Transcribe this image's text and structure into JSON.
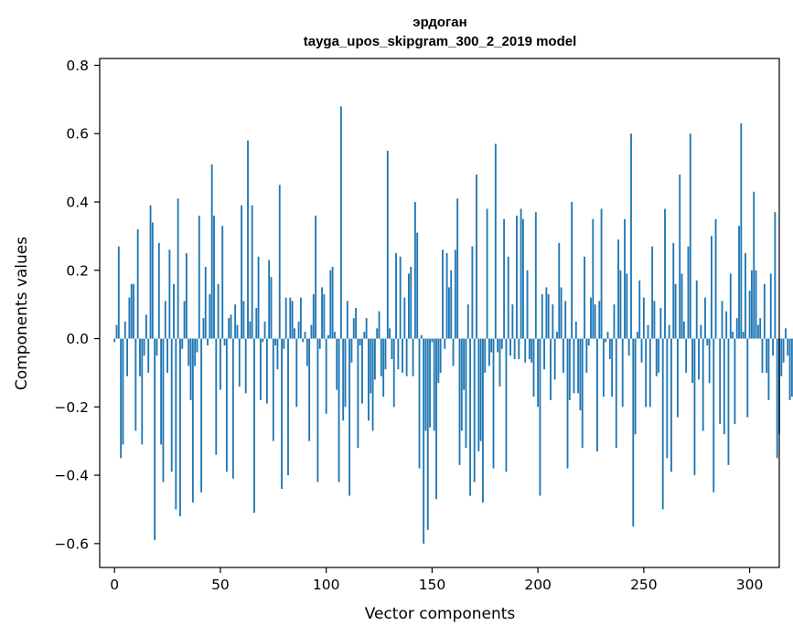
{
  "chart_data": {
    "type": "bar",
    "title_line1": "эрдоган",
    "title_line2": "tayga_upos_skipgram_300_2_2019 model",
    "xlabel": "Vector components",
    "ylabel": "Components values",
    "xlim": [
      -7,
      314
    ],
    "ylim": [
      -0.67,
      0.82
    ],
    "xticks": [
      0,
      50,
      100,
      150,
      200,
      250,
      300
    ],
    "yticks": [
      -0.6,
      -0.4,
      -0.2,
      0.0,
      0.2,
      0.4,
      0.6,
      0.8
    ],
    "ytick_labels": [
      "−0.6",
      "−0.4",
      "−0.2",
      "0.0",
      "0.2",
      "0.4",
      "0.6",
      "0.8"
    ],
    "bar_color": "#1f77b4",
    "values": [
      -0.01,
      0.04,
      0.27,
      -0.35,
      -0.31,
      0.05,
      -0.11,
      0.12,
      0.16,
      0.16,
      -0.27,
      0.32,
      -0.11,
      -0.31,
      -0.05,
      0.07,
      -0.1,
      0.39,
      0.34,
      -0.59,
      -0.05,
      0.28,
      -0.31,
      -0.42,
      0.11,
      -0.1,
      0.26,
      -0.39,
      0.16,
      -0.5,
      0.41,
      -0.52,
      -0.03,
      0.11,
      0.25,
      -0.08,
      -0.18,
      -0.48,
      -0.08,
      -0.04,
      0.36,
      -0.45,
      0.06,
      0.21,
      -0.02,
      0.13,
      0.51,
      0.36,
      -0.34,
      0.16,
      -0.15,
      0.33,
      -0.02,
      -0.39,
      0.06,
      0.07,
      -0.41,
      0.1,
      0.04,
      -0.14,
      0.39,
      0.11,
      -0.16,
      0.58,
      0.05,
      0.39,
      -0.51,
      0.09,
      0.24,
      -0.18,
      -0.01,
      0.05,
      -0.19,
      0.23,
      0.18,
      -0.3,
      -0.02,
      -0.09,
      0.45,
      -0.44,
      -0.03,
      0.12,
      -0.4,
      0.12,
      0.11,
      0.03,
      -0.2,
      0.05,
      0.12,
      -0.01,
      0.02,
      -0.08,
      -0.3,
      0.04,
      0.13,
      0.36,
      -0.42,
      -0.03,
      0.15,
      0.13,
      -0.22,
      0.01,
      0.2,
      0.21,
      0.02,
      -0.15,
      -0.42,
      0.68,
      -0.24,
      -0.2,
      0.11,
      -0.46,
      -0.07,
      0.06,
      0.09,
      -0.32,
      -0.02,
      -0.19,
      0.02,
      0.06,
      -0.24,
      -0.16,
      -0.27,
      -0.12,
      0.03,
      0.08,
      -0.11,
      -0.17,
      -0.09,
      0.55,
      0.03,
      -0.06,
      -0.2,
      0.25,
      -0.09,
      0.24,
      -0.1,
      0.12,
      -0.11,
      0.19,
      0.21,
      -0.11,
      0.4,
      0.31,
      -0.38,
      0.01,
      -0.6,
      -0.27,
      -0.56,
      -0.26,
      -0.01,
      -0.27,
      -0.47,
      -0.13,
      -0.1,
      0.26,
      -0.03,
      0.25,
      0.15,
      0.2,
      -0.08,
      0.26,
      0.41,
      -0.37,
      -0.27,
      -0.15,
      -0.32,
      0.1,
      -0.46,
      0.27,
      -0.42,
      0.48,
      -0.33,
      -0.3,
      -0.48,
      -0.1,
      0.38,
      -0.08,
      -0.04,
      -0.38,
      0.57,
      -0.04,
      -0.14,
      -0.03,
      0.35,
      -0.39,
      0.24,
      -0.05,
      0.1,
      -0.06,
      0.36,
      -0.06,
      0.38,
      0.35,
      -0.07,
      0.2,
      -0.06,
      -0.07,
      -0.17,
      0.37,
      -0.2,
      -0.46,
      0.13,
      -0.09,
      0.15,
      0.13,
      -0.18,
      0.1,
      -0.12,
      0.02,
      0.28,
      0.15,
      -0.1,
      0.11,
      -0.38,
      -0.18,
      0.4,
      -0.16,
      0.05,
      -0.16,
      -0.21,
      -0.32,
      0.24,
      -0.1,
      -0.02,
      0.12,
      0.35,
      0.1,
      -0.33,
      0.11,
      0.38,
      -0.17,
      -0.01,
      0.02,
      -0.06,
      -0.17,
      0.1,
      -0.32,
      0.29,
      0.2,
      -0.2,
      0.35,
      0.19,
      -0.05,
      0.6,
      -0.55,
      -0.28,
      0.02,
      0.17,
      -0.07,
      0.12,
      -0.2,
      0.04,
      -0.2,
      0.27,
      0.11,
      -0.11,
      -0.1,
      0.09,
      -0.5,
      0.38,
      -0.35,
      0.04,
      -0.39,
      0.28,
      0.16,
      -0.23,
      0.48,
      0.19,
      0.05,
      -0.1,
      0.27,
      0.6,
      -0.13,
      -0.4,
      0.17,
      -0.12,
      0.04,
      -0.27,
      0.12,
      -0.02,
      -0.13,
      0.3,
      -0.45,
      0.35,
      0.0,
      -0.25,
      0.11,
      -0.28,
      0.08,
      -0.37,
      0.19,
      0.02,
      -0.25,
      0.06,
      0.33,
      0.63,
      0.02,
      0.25,
      -0.23,
      0.14,
      0.2,
      0.43,
      0.2,
      0.04,
      0.06,
      -0.1,
      0.16,
      -0.1,
      -0.18,
      0.19,
      -0.05,
      0.37,
      -0.35,
      -0.28,
      -0.11,
      -0.07,
      0.03,
      -0.05,
      -0.18,
      -0.17
    ]
  }
}
